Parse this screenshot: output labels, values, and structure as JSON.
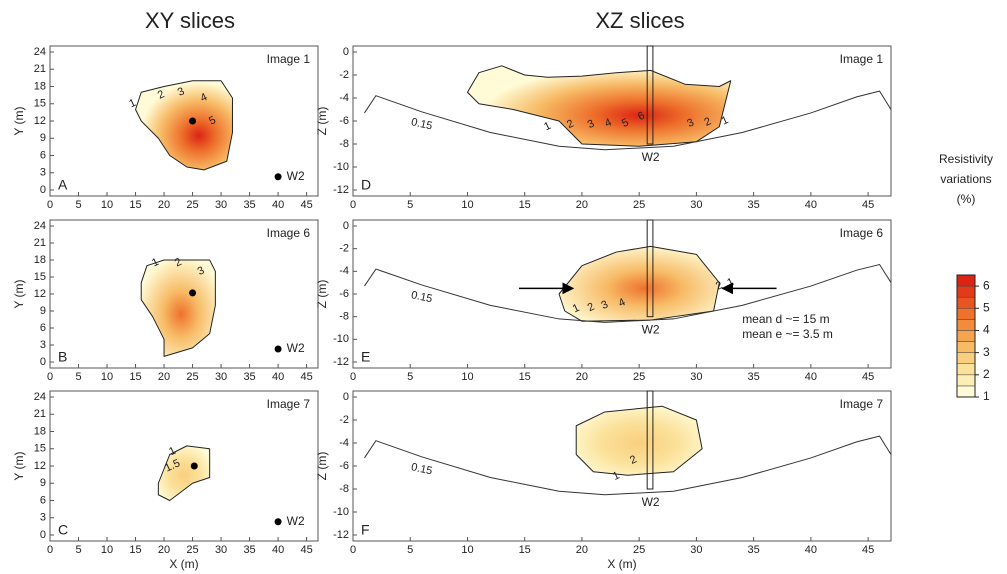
{
  "column_titles": [
    "XY slices",
    "XZ slices"
  ],
  "chart_data": [
    {
      "type": "contour",
      "panel": "A",
      "image": "Image 1",
      "ylabel": "Y (m)",
      "xlim": [
        0,
        47
      ],
      "ylim": [
        0,
        24
      ],
      "xticks": [
        0,
        5,
        10,
        15,
        20,
        25,
        30,
        35,
        40,
        45
      ],
      "yticks": [
        0,
        3,
        6,
        9,
        12,
        15,
        18,
        21,
        24
      ],
      "contour_labels": [
        1,
        2,
        3,
        4,
        5
      ],
      "well": "W2"
    },
    {
      "type": "contour",
      "panel": "B",
      "image": "Image 6",
      "ylabel": "Y (m)",
      "xlim": [
        0,
        47
      ],
      "ylim": [
        0,
        24
      ],
      "xticks": [
        0,
        5,
        10,
        15,
        20,
        25,
        30,
        35,
        40,
        45
      ],
      "yticks": [
        0,
        3,
        6,
        9,
        12,
        15,
        18,
        21,
        24
      ],
      "contour_labels": [
        1,
        2,
        3
      ],
      "well": "W2"
    },
    {
      "type": "contour",
      "panel": "C",
      "image": "Image 7",
      "ylabel": "Y (m)",
      "xlabel": "X (m)",
      "xlim": [
        0,
        47
      ],
      "ylim": [
        0,
        24
      ],
      "xticks": [
        0,
        5,
        10,
        15,
        20,
        25,
        30,
        35,
        40,
        45
      ],
      "yticks": [
        0,
        3,
        6,
        9,
        12,
        15,
        18,
        21,
        24
      ],
      "contour_labels": [
        1,
        1.5
      ],
      "well": "W2"
    },
    {
      "type": "contour",
      "panel": "D",
      "image": "Image 1",
      "ylabel": "Z (m)",
      "xlim": [
        0,
        47
      ],
      "ylim": [
        -12,
        0
      ],
      "xticks": [
        0,
        5,
        10,
        15,
        20,
        25,
        30,
        35,
        40,
        45
      ],
      "yticks": [
        0,
        -2,
        -4,
        -6,
        -8,
        -10,
        -12
      ],
      "contour_labels": [
        1,
        2,
        3,
        4,
        5,
        6,
        3,
        2,
        1
      ],
      "well": "W2",
      "surface_label": "0.15"
    },
    {
      "type": "contour",
      "panel": "E",
      "image": "Image 6",
      "ylabel": "Z (m)",
      "xlim": [
        0,
        47
      ],
      "ylim": [
        -12,
        0
      ],
      "xticks": [
        0,
        5,
        10,
        15,
        20,
        25,
        30,
        35,
        40,
        45
      ],
      "yticks": [
        0,
        -2,
        -4,
        -6,
        -8,
        -10,
        -12
      ],
      "contour_labels": [
        1,
        2,
        3,
        4,
        2,
        1
      ],
      "well": "W2",
      "surface_label": "0.15",
      "notes": [
        "mean d ~= 15 m",
        "mean e ~= 3.5 m"
      ]
    },
    {
      "type": "contour",
      "panel": "F",
      "image": "Image 7",
      "ylabel": "Z (m)",
      "xlabel": "X (m)",
      "xlim": [
        0,
        47
      ],
      "ylim": [
        -12,
        0
      ],
      "xticks": [
        0,
        5,
        10,
        15,
        20,
        25,
        30,
        35,
        40,
        45
      ],
      "yticks": [
        0,
        -2,
        -4,
        -6,
        -8,
        -10,
        -12
      ],
      "contour_labels": [
        2,
        1
      ],
      "well": "W2",
      "surface_label": "0.15"
    },
    {
      "type": "colorbar",
      "title": [
        "Resistivity",
        "variations",
        "(%)"
      ],
      "ylim": [
        1,
        6.5
      ],
      "yticks": [
        1,
        2,
        3,
        4,
        5,
        6
      ],
      "colors": [
        "#fffbd6",
        "#fdefb4",
        "#fbe19a",
        "#f9cf7f",
        "#f7bb66",
        "#f5a44e",
        "#f28c3b",
        "#ee712c",
        "#e95520",
        "#e33a18",
        "#dc2414"
      ]
    }
  ]
}
